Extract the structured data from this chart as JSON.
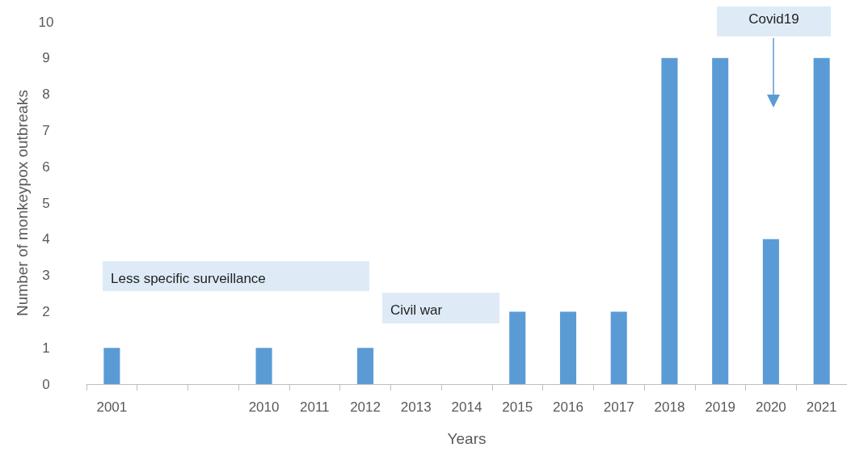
{
  "chart_data": {
    "type": "bar",
    "xlabel": "Years",
    "ylabel": "Number of monkeypox outbreaks",
    "categories": [
      "2001",
      null,
      null,
      "2010",
      "2011",
      "2012",
      "2013",
      "2014",
      "2015",
      "2016",
      "2017",
      "2018",
      "2019",
      "2020",
      "2021"
    ],
    "values": [
      1,
      0,
      0,
      1,
      0,
      1,
      0,
      0,
      2,
      2,
      2,
      9,
      9,
      4,
      9
    ],
    "color": "#5b9bd5",
    "ylim": [
      0,
      10
    ],
    "yticks": [
      0,
      1,
      2,
      3,
      4,
      5,
      6,
      7,
      8,
      9,
      10
    ],
    "grid": false,
    "annotations": [
      "Less specific surveillance",
      "Civil war",
      "Covid19"
    ]
  }
}
